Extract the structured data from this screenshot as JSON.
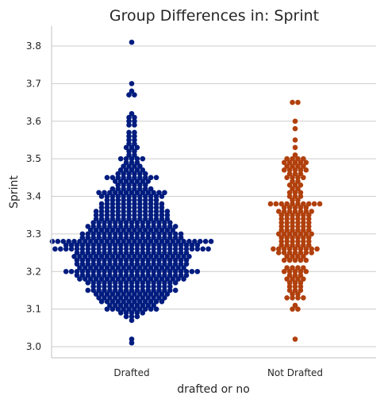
{
  "chart_data": {
    "type": "scatter",
    "subtype": "swarm",
    "title": "Group Differences in: Sprint",
    "xlabel": "drafted or no",
    "ylabel": "Sprint",
    "categories": [
      "Drafted",
      "Not Drafted"
    ],
    "ylim": [
      2.97,
      3.85
    ],
    "yticks": [
      "3.0",
      "3.1",
      "3.2",
      "3.3",
      "3.4",
      "3.5",
      "3.6",
      "3.7",
      "3.8"
    ],
    "grid": "horizontal",
    "colors": {
      "Drafted": "#001c7f",
      "Not Drafted": "#b1400d"
    },
    "series": [
      {
        "name": "Drafted",
        "bins": [
          [
            3.01,
            1
          ],
          [
            3.02,
            1
          ],
          [
            3.07,
            1
          ],
          [
            3.08,
            3
          ],
          [
            3.09,
            5
          ],
          [
            3.1,
            10
          ],
          [
            3.11,
            9
          ],
          [
            3.12,
            12
          ],
          [
            3.13,
            13
          ],
          [
            3.14,
            14
          ],
          [
            3.15,
            17
          ],
          [
            3.16,
            15
          ],
          [
            3.17,
            17
          ],
          [
            3.18,
            20
          ],
          [
            3.19,
            21
          ],
          [
            3.2,
            25
          ],
          [
            3.21,
            20
          ],
          [
            3.22,
            21
          ],
          [
            3.23,
            21
          ],
          [
            3.24,
            22
          ],
          [
            3.25,
            21
          ],
          [
            3.26,
            29
          ],
          [
            3.27,
            25
          ],
          [
            3.28,
            30
          ],
          [
            3.29,
            19
          ],
          [
            3.3,
            19
          ],
          [
            3.31,
            16
          ],
          [
            3.32,
            17
          ],
          [
            3.33,
            15
          ],
          [
            3.34,
            14
          ],
          [
            3.35,
            14
          ],
          [
            3.36,
            14
          ],
          [
            3.37,
            12
          ],
          [
            3.38,
            12
          ],
          [
            3.39,
            10
          ],
          [
            3.4,
            12
          ],
          [
            3.41,
            13
          ],
          [
            3.42,
            8
          ],
          [
            3.43,
            6
          ],
          [
            3.44,
            7
          ],
          [
            3.45,
            10
          ],
          [
            3.46,
            6
          ],
          [
            3.47,
            5
          ],
          [
            3.48,
            4
          ],
          [
            3.49,
            3
          ],
          [
            3.5,
            5
          ],
          [
            3.51,
            2
          ],
          [
            3.52,
            2
          ],
          [
            3.53,
            3
          ],
          [
            3.54,
            2
          ],
          [
            3.55,
            2
          ],
          [
            3.56,
            2
          ],
          [
            3.57,
            2
          ],
          [
            3.59,
            2
          ],
          [
            3.6,
            2
          ],
          [
            3.61,
            2
          ],
          [
            3.62,
            1
          ],
          [
            3.67,
            2
          ],
          [
            3.68,
            1
          ],
          [
            3.7,
            1
          ],
          [
            3.81,
            1
          ]
        ]
      },
      {
        "name": "Not Drafted",
        "bins": [
          [
            3.02,
            1
          ],
          [
            3.1,
            2
          ],
          [
            3.11,
            1
          ],
          [
            3.13,
            4
          ],
          [
            3.14,
            2
          ],
          [
            3.15,
            3
          ],
          [
            3.16,
            3
          ],
          [
            3.17,
            3
          ],
          [
            3.18,
            4
          ],
          [
            3.19,
            3
          ],
          [
            3.2,
            5
          ],
          [
            3.21,
            4
          ],
          [
            3.23,
            5
          ],
          [
            3.24,
            4
          ],
          [
            3.25,
            7
          ],
          [
            3.26,
            9
          ],
          [
            3.27,
            6
          ],
          [
            3.28,
            6
          ],
          [
            3.29,
            6
          ],
          [
            3.3,
            7
          ],
          [
            3.31,
            6
          ],
          [
            3.32,
            6
          ],
          [
            3.33,
            6
          ],
          [
            3.34,
            6
          ],
          [
            3.35,
            6
          ],
          [
            3.36,
            7
          ],
          [
            3.37,
            5
          ],
          [
            3.38,
            10
          ],
          [
            3.39,
            2
          ],
          [
            3.4,
            3
          ],
          [
            3.41,
            3
          ],
          [
            3.42,
            2
          ],
          [
            3.43,
            3
          ],
          [
            3.44,
            2
          ],
          [
            3.45,
            4
          ],
          [
            3.46,
            3
          ],
          [
            3.47,
            5
          ],
          [
            3.48,
            4
          ],
          [
            3.49,
            5
          ],
          [
            3.5,
            4
          ],
          [
            3.51,
            1
          ],
          [
            3.53,
            1
          ],
          [
            3.55,
            1
          ],
          [
            3.58,
            1
          ],
          [
            3.6,
            1
          ],
          [
            3.65,
            2
          ]
        ]
      }
    ]
  }
}
